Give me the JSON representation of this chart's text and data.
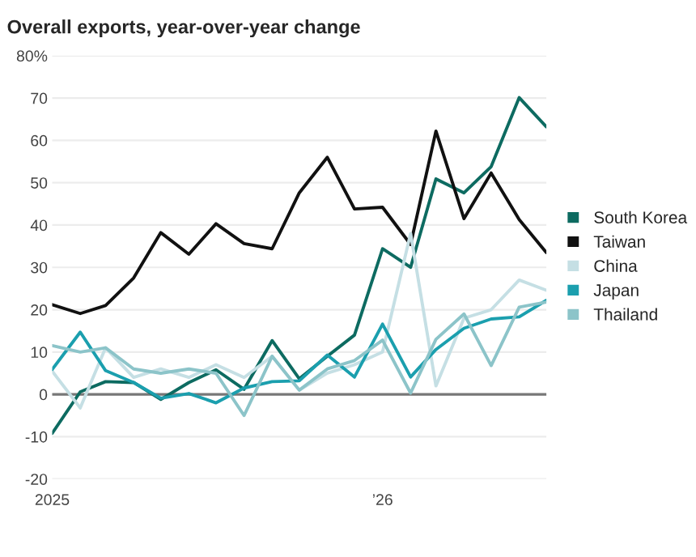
{
  "chart_data": {
    "type": "line",
    "title": "Overall exports, year-over-year change",
    "x": [
      "2025-01",
      "2025-02",
      "2025-03",
      "2025-04",
      "2025-05",
      "2025-06",
      "2025-07",
      "2025-08",
      "2025-09",
      "2025-10",
      "2025-11",
      "2025-12",
      "2026-01",
      "2026-02",
      "2026-03",
      "2026-04",
      "2026-05",
      "2026-06",
      "2026-07"
    ],
    "series": [
      {
        "name": "South Korea",
        "color": "#0d6b61",
        "values": [
          -9.2,
          0.6,
          3,
          2.8,
          -1.2,
          2.8,
          5.8,
          1.2,
          12.7,
          3.7,
          9,
          14,
          34.4,
          30,
          50.9,
          47.6,
          53.8,
          70.1,
          63.2
        ]
      },
      {
        "name": "Taiwan",
        "color": "#111111",
        "values": [
          21.2,
          19.1,
          21,
          27.5,
          38.2,
          33.1,
          40.3,
          35.6,
          34.4,
          47.6,
          56,
          43.8,
          44.2,
          35.4,
          62.2,
          41.5,
          52.3,
          41.3,
          33.5
        ]
      },
      {
        "name": "China",
        "color": "#c5dfe4",
        "values": [
          5.5,
          -3.2,
          11,
          4,
          6,
          4,
          7,
          4,
          9,
          1,
          5,
          7,
          10,
          38,
          2,
          18,
          20,
          27,
          24.6
        ]
      },
      {
        "name": "Japan",
        "color": "#1b9fae",
        "values": [
          5.9,
          14.7,
          5.6,
          2.8,
          -0.9,
          0.2,
          -2,
          1.5,
          3,
          3.2,
          9.3,
          4.1,
          16.6,
          4.1,
          10.6,
          15.6,
          17.8,
          18.3,
          22.2
        ]
      },
      {
        "name": "Thailand",
        "color": "#8cc4c9",
        "values": [
          11.5,
          10,
          11,
          6,
          5,
          6,
          5,
          -5,
          9,
          1,
          6,
          8,
          12.8,
          0.3,
          13,
          19,
          6.8,
          20.6,
          21.8
        ]
      }
    ],
    "xlim": [
      "2025-01",
      "2026-07"
    ],
    "xticks": [
      {
        "value": "2025-01",
        "label": "2025"
      },
      {
        "value": "2026-01",
        "label": "’26"
      }
    ],
    "ylim": [
      -20,
      80
    ],
    "yticks": [
      -20,
      -10,
      0,
      10,
      20,
      30,
      40,
      50,
      60,
      70,
      {
        "value": 80,
        "label": "80%"
      }
    ],
    "ref_lines": [
      {
        "axis": "y",
        "value": 0,
        "color": "#777777"
      }
    ],
    "grid": "y",
    "legend": "right",
    "marker": "none",
    "line_style": "solid"
  }
}
